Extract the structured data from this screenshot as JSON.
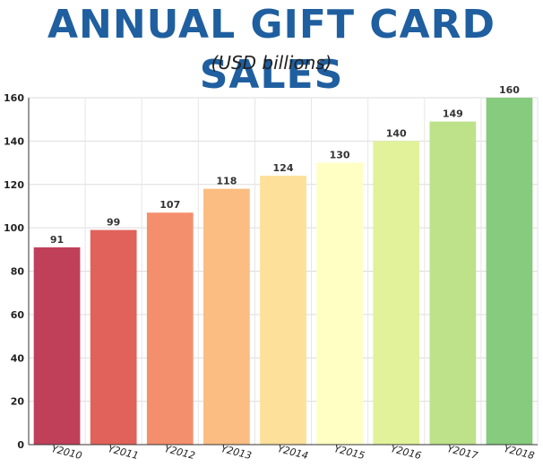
{
  "chart_data": {
    "type": "bar",
    "title": "ANNUAL GIFT CARD SALES",
    "subtitle": "(USD billions)",
    "categories": [
      "Y2010",
      "Y2011",
      "Y2012",
      "Y2013",
      "Y2014",
      "Y2015",
      "Y2016",
      "Y2017",
      "Y2018"
    ],
    "values": [
      91,
      99,
      107,
      118,
      124,
      130,
      140,
      149,
      160
    ],
    "colors": [
      "#c0405a",
      "#e0625a",
      "#f48f6e",
      "#fbbd82",
      "#fde09a",
      "#ffffc4",
      "#e1f29a",
      "#bde28a",
      "#86cb7e"
    ],
    "ylim": [
      0,
      160
    ],
    "yticks": [
      0,
      20,
      40,
      60,
      80,
      100,
      120,
      140,
      160
    ],
    "grid": true,
    "legend": "none",
    "xlabel": "",
    "ylabel": ""
  }
}
